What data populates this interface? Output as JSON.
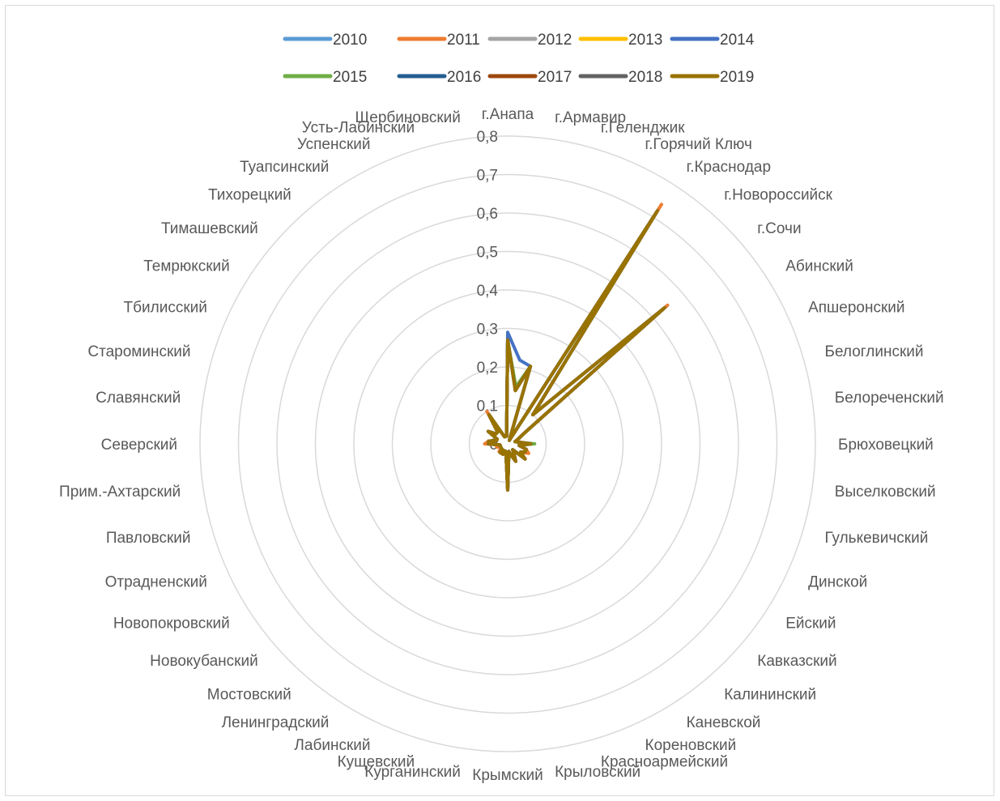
{
  "chart_data": {
    "type": "radar",
    "title": "",
    "categories": [
      "г.Анапа",
      "г.Армавир",
      "г.Геленджик",
      "г.Горячий Ключ",
      "г.Краснодар",
      "г.Новороссийск",
      "г.Сочи",
      "Абинский",
      "Апшеронский",
      "Белоглинский",
      "Белореченский",
      "Брюховецкий",
      "Выселковский",
      "Гулькевичский",
      "Динской",
      "Ейский",
      "Кавказский",
      "Калининский",
      "Каневской",
      "Кореновский",
      "Красноармейский",
      "Крыловский",
      "Крымский",
      "Курганинский",
      "Кущевский",
      "Лабинский",
      "Ленинградский",
      "Мостовский",
      "Новокубанский",
      "Новопокровский",
      "Отрадненский",
      "Павловский",
      "Прим.-Ахтарский",
      "Северский",
      "Славянский",
      "Староминский",
      "Тбилисский",
      "Темрюкский",
      "Тимашевский",
      "Тихорецкий",
      "Туапсинский",
      "Успенский",
      "Усть-Лабинский",
      "Щербиновский"
    ],
    "r_ticks": [
      "0",
      "0,1",
      "0,2",
      "0,3",
      "0,4",
      "0,5",
      "0,6",
      "0,7",
      "0,8"
    ],
    "r_range": [
      0,
      0.8
    ],
    "grid": true,
    "legend_position": "top",
    "series": [
      {
        "name": "2010",
        "color": "#5b9bd5",
        "values": [
          0.27,
          0.14,
          0.21,
          0.01,
          0.73,
          0.1,
          0.55,
          0.05,
          0.03,
          0.02,
          0.03,
          0.06,
          0.03,
          0.05,
          0.05,
          0.04,
          0.06,
          0.02,
          0.03,
          0.05,
          0.03,
          0.02,
          0.12,
          0.03,
          0.02,
          0.03,
          0.02,
          0.03,
          0.02,
          0.02,
          0.02,
          0.02,
          0.02,
          0.05,
          0.05,
          0.03,
          0.03,
          0.06,
          0.04,
          0.04,
          0.09,
          0.02,
          0.02,
          0.02
        ]
      },
      {
        "name": "2011",
        "color": "#ed7d31",
        "values": [
          0.27,
          0.14,
          0.21,
          0.01,
          0.74,
          0.1,
          0.55,
          0.05,
          0.03,
          0.02,
          0.03,
          0.06,
          0.03,
          0.05,
          0.06,
          0.04,
          0.06,
          0.02,
          0.03,
          0.05,
          0.03,
          0.02,
          0.12,
          0.03,
          0.02,
          0.03,
          0.03,
          0.03,
          0.03,
          0.02,
          0.02,
          0.03,
          0.02,
          0.06,
          0.05,
          0.03,
          0.03,
          0.06,
          0.04,
          0.04,
          0.1,
          0.02,
          0.02,
          0.02
        ]
      },
      {
        "name": "2012",
        "color": "#a5a5a5",
        "values": [
          0.27,
          0.14,
          0.21,
          0.01,
          0.72,
          0.1,
          0.54,
          0.05,
          0.03,
          0.02,
          0.03,
          0.06,
          0.03,
          0.05,
          0.05,
          0.04,
          0.06,
          0.02,
          0.03,
          0.05,
          0.03,
          0.02,
          0.12,
          0.03,
          0.02,
          0.03,
          0.02,
          0.03,
          0.02,
          0.02,
          0.02,
          0.02,
          0.02,
          0.05,
          0.05,
          0.03,
          0.03,
          0.06,
          0.04,
          0.04,
          0.09,
          0.02,
          0.02,
          0.02
        ]
      },
      {
        "name": "2013",
        "color": "#ffc000",
        "values": [
          0.27,
          0.14,
          0.21,
          0.01,
          0.72,
          0.1,
          0.54,
          0.05,
          0.03,
          0.02,
          0.03,
          0.06,
          0.03,
          0.05,
          0.05,
          0.04,
          0.06,
          0.02,
          0.03,
          0.05,
          0.03,
          0.02,
          0.12,
          0.03,
          0.02,
          0.03,
          0.02,
          0.03,
          0.02,
          0.02,
          0.02,
          0.02,
          0.02,
          0.05,
          0.05,
          0.03,
          0.03,
          0.06,
          0.04,
          0.04,
          0.09,
          0.02,
          0.02,
          0.02
        ]
      },
      {
        "name": "2014",
        "color": "#4472c4",
        "values": [
          0.29,
          0.22,
          0.21,
          0.01,
          0.72,
          0.1,
          0.54,
          0.05,
          0.03,
          0.02,
          0.03,
          0.06,
          0.03,
          0.05,
          0.05,
          0.04,
          0.06,
          0.02,
          0.03,
          0.05,
          0.03,
          0.02,
          0.12,
          0.03,
          0.02,
          0.03,
          0.02,
          0.03,
          0.02,
          0.02,
          0.02,
          0.02,
          0.02,
          0.05,
          0.05,
          0.03,
          0.03,
          0.06,
          0.04,
          0.04,
          0.09,
          0.02,
          0.02,
          0.02
        ]
      },
      {
        "name": "2015",
        "color": "#70ad47",
        "values": [
          0.27,
          0.15,
          0.21,
          0.01,
          0.72,
          0.1,
          0.54,
          0.05,
          0.03,
          0.02,
          0.03,
          0.07,
          0.03,
          0.05,
          0.05,
          0.04,
          0.06,
          0.02,
          0.03,
          0.05,
          0.03,
          0.02,
          0.12,
          0.03,
          0.02,
          0.03,
          0.02,
          0.03,
          0.02,
          0.02,
          0.02,
          0.02,
          0.02,
          0.05,
          0.05,
          0.03,
          0.03,
          0.06,
          0.04,
          0.04,
          0.09,
          0.02,
          0.02,
          0.02
        ]
      },
      {
        "name": "2016",
        "color": "#255e91",
        "values": [
          0.27,
          0.14,
          0.21,
          0.01,
          0.72,
          0.1,
          0.54,
          0.05,
          0.03,
          0.02,
          0.03,
          0.06,
          0.03,
          0.05,
          0.05,
          0.04,
          0.06,
          0.02,
          0.03,
          0.05,
          0.03,
          0.02,
          0.12,
          0.03,
          0.02,
          0.03,
          0.02,
          0.03,
          0.02,
          0.02,
          0.02,
          0.02,
          0.02,
          0.05,
          0.05,
          0.03,
          0.03,
          0.06,
          0.04,
          0.04,
          0.09,
          0.02,
          0.02,
          0.02
        ]
      },
      {
        "name": "2017",
        "color": "#9e480e",
        "values": [
          0.27,
          0.14,
          0.21,
          0.01,
          0.72,
          0.1,
          0.54,
          0.05,
          0.03,
          0.02,
          0.03,
          0.06,
          0.03,
          0.05,
          0.05,
          0.04,
          0.06,
          0.02,
          0.03,
          0.05,
          0.03,
          0.02,
          0.12,
          0.03,
          0.02,
          0.03,
          0.02,
          0.03,
          0.02,
          0.02,
          0.02,
          0.02,
          0.02,
          0.05,
          0.05,
          0.03,
          0.03,
          0.06,
          0.04,
          0.04,
          0.09,
          0.02,
          0.02,
          0.02
        ]
      },
      {
        "name": "2018",
        "color": "#636363",
        "values": [
          0.27,
          0.14,
          0.21,
          0.01,
          0.72,
          0.1,
          0.54,
          0.05,
          0.03,
          0.02,
          0.03,
          0.06,
          0.03,
          0.05,
          0.05,
          0.04,
          0.06,
          0.02,
          0.03,
          0.05,
          0.03,
          0.02,
          0.12,
          0.03,
          0.02,
          0.03,
          0.02,
          0.03,
          0.02,
          0.02,
          0.02,
          0.02,
          0.02,
          0.05,
          0.05,
          0.03,
          0.03,
          0.06,
          0.04,
          0.04,
          0.09,
          0.02,
          0.02,
          0.02
        ]
      },
      {
        "name": "2019",
        "color": "#997300",
        "values": [
          0.27,
          0.14,
          0.21,
          0.01,
          0.72,
          0.1,
          0.54,
          0.05,
          0.03,
          0.02,
          0.03,
          0.06,
          0.03,
          0.05,
          0.05,
          0.04,
          0.06,
          0.02,
          0.03,
          0.05,
          0.03,
          0.02,
          0.12,
          0.03,
          0.02,
          0.03,
          0.02,
          0.03,
          0.02,
          0.02,
          0.02,
          0.02,
          0.02,
          0.05,
          0.05,
          0.03,
          0.03,
          0.06,
          0.04,
          0.04,
          0.09,
          0.02,
          0.02,
          0.02
        ]
      }
    ]
  }
}
